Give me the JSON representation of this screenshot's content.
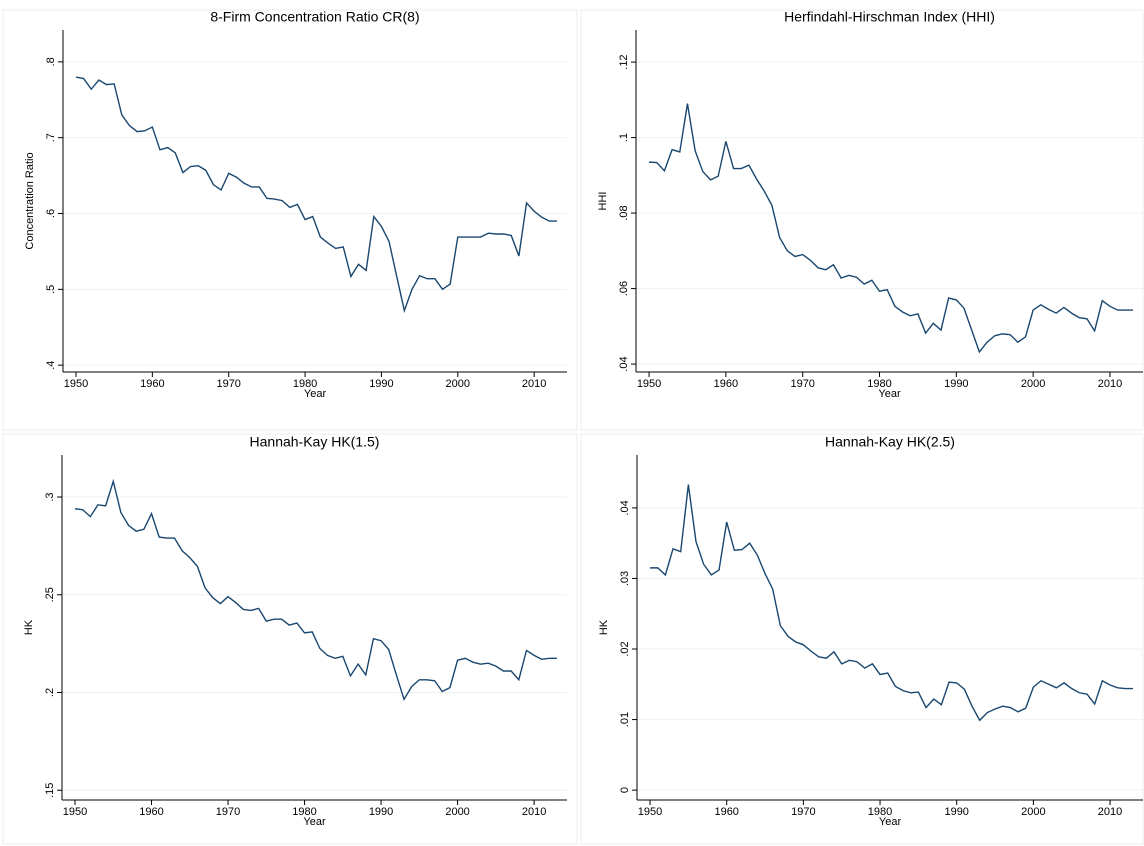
{
  "chart_data": [
    {
      "type": "line",
      "title": "8-Firm Concentration Ratio CR(8)",
      "xlabel": "Year",
      "ylabel": "Concentration Ratio",
      "color": "#1a476f",
      "grid": true,
      "x": [
        1950,
        1951,
        1952,
        1953,
        1954,
        1955,
        1956,
        1957,
        1958,
        1959,
        1960,
        1961,
        1962,
        1963,
        1964,
        1965,
        1966,
        1967,
        1968,
        1969,
        1970,
        1971,
        1972,
        1973,
        1974,
        1975,
        1976,
        1977,
        1978,
        1979,
        1980,
        1981,
        1982,
        1983,
        1984,
        1985,
        1986,
        1987,
        1988,
        1989,
        1990,
        1991,
        1992,
        1993,
        1994,
        1995,
        1996,
        1997,
        1998,
        1999,
        2000,
        2001,
        2002,
        2003,
        2004,
        2005,
        2006,
        2007,
        2008,
        2009,
        2010,
        2011,
        2012,
        2013
      ],
      "values": [
        0.78,
        0.778,
        0.764,
        0.776,
        0.77,
        0.771,
        0.73,
        0.716,
        0.708,
        0.709,
        0.714,
        0.684,
        0.687,
        0.68,
        0.654,
        0.662,
        0.663,
        0.657,
        0.638,
        0.631,
        0.653,
        0.648,
        0.64,
        0.635,
        0.635,
        0.62,
        0.619,
        0.617,
        0.608,
        0.612,
        0.592,
        0.596,
        0.569,
        0.561,
        0.554,
        0.556,
        0.517,
        0.533,
        0.525,
        0.596,
        0.583,
        0.563,
        0.517,
        0.472,
        0.5,
        0.518,
        0.514,
        0.514,
        0.5,
        0.507,
        0.569,
        0.569,
        0.569,
        0.569,
        0.574,
        0.573,
        0.573,
        0.571,
        0.544,
        0.614,
        0.603,
        0.595,
        0.59,
        0.59
      ],
      "xlim": [
        1948.3,
        2014.3
      ],
      "ylim": [
        0.391,
        0.842
      ],
      "xticks": [
        1950,
        1960,
        1970,
        1980,
        1990,
        2000,
        2010
      ],
      "yticks": [
        {
          "value": 0.4,
          "label": ".4"
        },
        {
          "value": 0.5,
          "label": ".5"
        },
        {
          "value": 0.6,
          "label": ".6"
        },
        {
          "value": 0.7,
          "label": ".7"
        },
        {
          "value": 0.8,
          "label": ".8"
        }
      ]
    },
    {
      "type": "line",
      "title": "Herfindahl-Hirschman Index (HHI)",
      "xlabel": "Year",
      "ylabel": "HHI",
      "color": "#1a476f",
      "grid": true,
      "x": [
        1950,
        1951,
        1952,
        1953,
        1954,
        1955,
        1956,
        1957,
        1958,
        1959,
        1960,
        1961,
        1962,
        1963,
        1964,
        1965,
        1966,
        1967,
        1968,
        1969,
        1970,
        1971,
        1972,
        1973,
        1974,
        1975,
        1976,
        1977,
        1978,
        1979,
        1980,
        1981,
        1982,
        1983,
        1984,
        1985,
        1986,
        1987,
        1988,
        1989,
        1990,
        1991,
        1992,
        1993,
        1994,
        1995,
        1996,
        1997,
        1998,
        1999,
        2000,
        2001,
        2002,
        2003,
        2004,
        2005,
        2006,
        2007,
        2008,
        2009,
        2010,
        2011,
        2012,
        2013
      ],
      "values": [
        0.0935,
        0.0934,
        0.0912,
        0.0968,
        0.0962,
        0.109,
        0.0965,
        0.091,
        0.0888,
        0.0898,
        0.099,
        0.0918,
        0.0918,
        0.0927,
        0.089,
        0.0858,
        0.082,
        0.0735,
        0.07,
        0.0685,
        0.069,
        0.0675,
        0.0655,
        0.065,
        0.0663,
        0.0628,
        0.0635,
        0.063,
        0.0612,
        0.0622,
        0.0593,
        0.0597,
        0.0553,
        0.0538,
        0.0528,
        0.0533,
        0.0482,
        0.0508,
        0.049,
        0.0575,
        0.057,
        0.0548,
        0.049,
        0.0432,
        0.0458,
        0.0475,
        0.048,
        0.0478,
        0.0458,
        0.0472,
        0.0543,
        0.0557,
        0.0545,
        0.0535,
        0.055,
        0.0535,
        0.0523,
        0.052,
        0.0488,
        0.0568,
        0.0553,
        0.0543,
        0.0543,
        0.0543
      ],
      "xlim": [
        1948.3,
        2014.3
      ],
      "ylim": [
        0.0379,
        0.1285
      ],
      "xticks": [
        1950,
        1960,
        1970,
        1980,
        1990,
        2000,
        2010
      ],
      "yticks": [
        {
          "value": 0.04,
          "label": ".04"
        },
        {
          "value": 0.06,
          "label": ".06"
        },
        {
          "value": 0.08,
          "label": ".08"
        },
        {
          "value": 0.1,
          "label": ".1"
        },
        {
          "value": 0.12,
          "label": ".12"
        }
      ]
    },
    {
      "type": "line",
      "title": "Hannah-Kay HK(1.5)",
      "xlabel": "Year",
      "ylabel": "HK",
      "color": "#1a476f",
      "grid": true,
      "x": [
        1950,
        1951,
        1952,
        1953,
        1954,
        1955,
        1956,
        1957,
        1958,
        1959,
        1960,
        1961,
        1962,
        1963,
        1964,
        1965,
        1966,
        1967,
        1968,
        1969,
        1970,
        1971,
        1972,
        1973,
        1974,
        1975,
        1976,
        1977,
        1978,
        1979,
        1980,
        1981,
        1982,
        1983,
        1984,
        1985,
        1986,
        1987,
        1988,
        1989,
        1990,
        1991,
        1992,
        1993,
        1994,
        1995,
        1996,
        1997,
        1998,
        1999,
        2000,
        2001,
        2002,
        2003,
        2004,
        2005,
        2006,
        2007,
        2008,
        2009,
        2010,
        2011,
        2012,
        2013
      ],
      "values": [
        0.294,
        0.2935,
        0.29,
        0.296,
        0.2955,
        0.308,
        0.292,
        0.2855,
        0.2825,
        0.2835,
        0.2915,
        0.2795,
        0.279,
        0.279,
        0.2725,
        0.269,
        0.2645,
        0.2535,
        0.2485,
        0.2455,
        0.249,
        0.246,
        0.2425,
        0.242,
        0.243,
        0.2365,
        0.2375,
        0.2375,
        0.2345,
        0.2355,
        0.2305,
        0.231,
        0.2225,
        0.219,
        0.2175,
        0.2185,
        0.2085,
        0.2145,
        0.209,
        0.2275,
        0.2265,
        0.222,
        0.209,
        0.1965,
        0.203,
        0.2065,
        0.2065,
        0.206,
        0.2005,
        0.2025,
        0.2165,
        0.2175,
        0.2155,
        0.2145,
        0.215,
        0.2135,
        0.211,
        0.211,
        0.2065,
        0.2215,
        0.219,
        0.217,
        0.2175,
        0.2175
      ],
      "xlim": [
        1948.3,
        2014.3
      ],
      "ylim": [
        0.145,
        0.3215
      ],
      "xticks": [
        1950,
        1960,
        1970,
        1980,
        1990,
        2000,
        2010
      ],
      "yticks": [
        {
          "value": 0.15,
          "label": ".15"
        },
        {
          "value": 0.2,
          "label": ".2"
        },
        {
          "value": 0.25,
          "label": ".25"
        },
        {
          "value": 0.3,
          "label": ".3"
        }
      ]
    },
    {
      "type": "line",
      "title": "Hannah-Kay HK(2.5)",
      "xlabel": "Year",
      "ylabel": "HK",
      "color": "#1a476f",
      "grid": true,
      "x": [
        1950,
        1951,
        1952,
        1953,
        1954,
        1955,
        1956,
        1957,
        1958,
        1959,
        1960,
        1961,
        1962,
        1963,
        1964,
        1965,
        1966,
        1967,
        1968,
        1969,
        1970,
        1971,
        1972,
        1973,
        1974,
        1975,
        1976,
        1977,
        1978,
        1979,
        1980,
        1981,
        1982,
        1983,
        1984,
        1985,
        1986,
        1987,
        1988,
        1989,
        1990,
        1991,
        1992,
        1993,
        1994,
        1995,
        1996,
        1997,
        1998,
        1999,
        2000,
        2001,
        2002,
        2003,
        2004,
        2005,
        2006,
        2007,
        2008,
        2009,
        2010,
        2011,
        2012,
        2013
      ],
      "values": [
        0.0315,
        0.0315,
        0.0305,
        0.0342,
        0.0338,
        0.0433,
        0.0352,
        0.032,
        0.0305,
        0.0312,
        0.038,
        0.034,
        0.0341,
        0.035,
        0.0333,
        0.0307,
        0.0285,
        0.0233,
        0.0218,
        0.021,
        0.0206,
        0.0197,
        0.0189,
        0.0187,
        0.0196,
        0.0179,
        0.0184,
        0.0182,
        0.0173,
        0.0179,
        0.0164,
        0.0166,
        0.0147,
        0.0141,
        0.0138,
        0.0139,
        0.0117,
        0.0129,
        0.0121,
        0.0153,
        0.0152,
        0.0143,
        0.0119,
        0.0099,
        0.011,
        0.0115,
        0.0119,
        0.0117,
        0.0111,
        0.0116,
        0.0146,
        0.0155,
        0.015,
        0.0145,
        0.0152,
        0.0144,
        0.0138,
        0.0136,
        0.0122,
        0.0155,
        0.0149,
        0.0145,
        0.0144,
        0.0144
      ],
      "xlim": [
        1948.3,
        2014.3
      ],
      "ylim": [
        -0.0014,
        0.0475
      ],
      "xticks": [
        1950,
        1960,
        1970,
        1980,
        1990,
        2000,
        2010
      ],
      "yticks": [
        0,
        {
          "value": 0.01,
          "label": ".01"
        },
        {
          "value": 0.02,
          "label": ".02"
        },
        {
          "value": 0.03,
          "label": ".03"
        },
        {
          "value": 0.04,
          "label": ".04"
        }
      ]
    }
  ]
}
